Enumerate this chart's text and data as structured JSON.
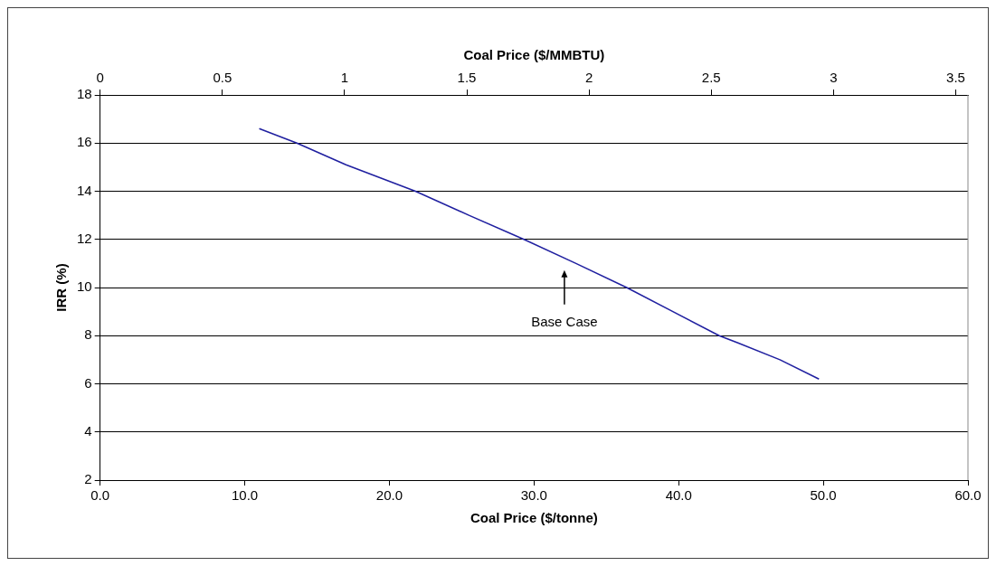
{
  "chart_data": {
    "type": "line",
    "xlabel": "Coal Price ($/tonne)",
    "ylabel": "IRR (%)",
    "x2label": "Coal Price ($/MMBTU)",
    "xlim": [
      0,
      60
    ],
    "xticks": [
      {
        "value": 0,
        "label": "0.0"
      },
      {
        "value": 10,
        "label": "10.0"
      },
      {
        "value": 20,
        "label": "20.0"
      },
      {
        "value": 30,
        "label": "30.0"
      },
      {
        "value": 40,
        "label": "40.0"
      },
      {
        "value": 50,
        "label": "50.0"
      },
      {
        "value": 60,
        "label": "60.0"
      }
    ],
    "x2lim": [
      0,
      3.55
    ],
    "x2ticks": [
      0,
      0.5,
      1,
      1.5,
      2,
      2.5,
      3,
      3.5
    ],
    "ylim": [
      2,
      18
    ],
    "yticks": [
      2,
      4,
      6,
      8,
      10,
      12,
      14,
      16,
      18
    ],
    "grid": "y",
    "marker": "none",
    "series": [
      {
        "color": "#2020a0",
        "x": [
          11.0,
          13.6,
          17.0,
          21.8,
          25.5,
          29.3,
          32.9,
          36.4,
          39.6,
          42.8,
          44.1,
          47.0,
          49.7
        ],
        "values": [
          16.6,
          16.0,
          15.1,
          14.0,
          13.0,
          12.0,
          11.0,
          10.0,
          9.0,
          8.0,
          7.7,
          7.0,
          6.2
        ]
      }
    ],
    "annotations": [
      "Base Case"
    ]
  }
}
